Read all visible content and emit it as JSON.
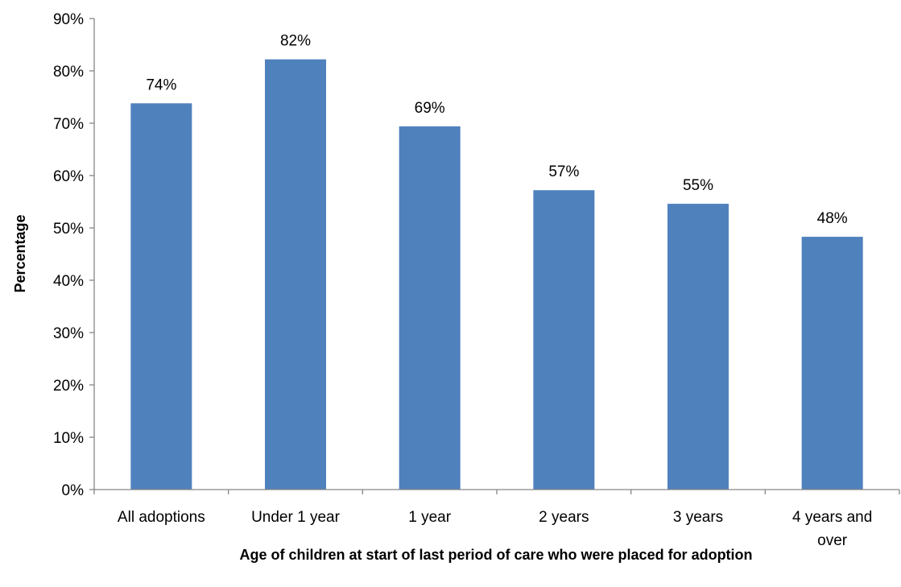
{
  "chart_data": {
    "type": "bar",
    "title": "",
    "xlabel": "Age of children at start of last period of care who were placed for adoption",
    "ylabel": "Percentage",
    "categories": [
      "All adoptions",
      "Under 1 year",
      "1 year",
      "2 years",
      "3 years",
      "4 years and over"
    ],
    "values": [
      73.8,
      82.2,
      69.4,
      57.2,
      54.6,
      48.3
    ],
    "data_labels": [
      "74%",
      "82%",
      "69%",
      "57%",
      "55%",
      "48%"
    ],
    "ylim": [
      0,
      90
    ],
    "y_ticks": [
      0,
      10,
      20,
      30,
      40,
      50,
      60,
      70,
      80,
      90
    ],
    "y_tick_labels": [
      "0%",
      "10%",
      "20%",
      "30%",
      "40%",
      "50%",
      "60%",
      "70%",
      "80%",
      "90%"
    ],
    "grid": false,
    "legend": "none",
    "bar_color": "#4F81BD",
    "axis_color": "#868686"
  }
}
